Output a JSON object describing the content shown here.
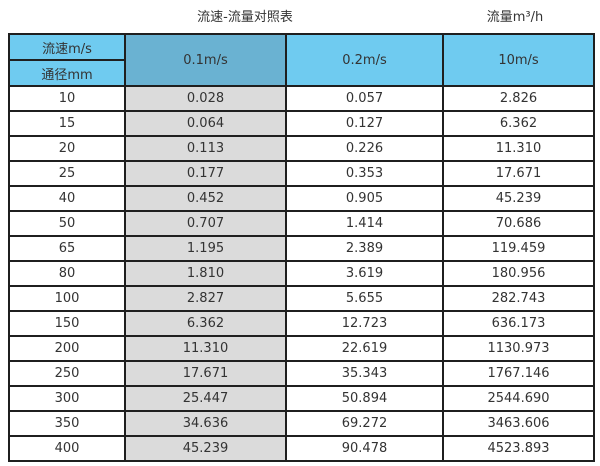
{
  "header": {
    "table_title": "流速-流量对照表",
    "unit_label": "流量m³/h"
  },
  "table": {
    "corner_top": "流速m/s",
    "corner_bottom": "通径mm",
    "velocity_headers": [
      "0.1m/s",
      "0.2m/s",
      "10m/s"
    ]
  },
  "chart_data": {
    "type": "table",
    "title": "流速-流量对照表",
    "unit": "流量m³/h",
    "columns": [
      "通径mm",
      "0.1m/s",
      "0.2m/s",
      "10m/s"
    ],
    "rows": [
      [
        "10",
        "0.028",
        "0.057",
        "2.826"
      ],
      [
        "15",
        "0.064",
        "0.127",
        "6.362"
      ],
      [
        "20",
        "0.113",
        "0.226",
        "11.310"
      ],
      [
        "25",
        "0.177",
        "0.353",
        "17.671"
      ],
      [
        "40",
        "0.452",
        "0.905",
        "45.239"
      ],
      [
        "50",
        "0.707",
        "1.414",
        "70.686"
      ],
      [
        "65",
        "1.195",
        "2.389",
        "119.459"
      ],
      [
        "80",
        "1.810",
        "3.619",
        "180.956"
      ],
      [
        "100",
        "2.827",
        "5.655",
        "282.743"
      ],
      [
        "150",
        "6.362",
        "12.723",
        "636.173"
      ],
      [
        "200",
        "11.310",
        "22.619",
        "1130.973"
      ],
      [
        "250",
        "17.671",
        "35.343",
        "1767.146"
      ],
      [
        "300",
        "25.447",
        "50.894",
        "2544.690"
      ],
      [
        "350",
        "34.636",
        "69.272",
        "3463.606"
      ],
      [
        "400",
        "45.239",
        "90.478",
        "4523.893"
      ]
    ]
  },
  "colors": {
    "header_light_blue": "#6fcbf0",
    "header_dark_blue": "#6ab2d2",
    "shaded_column_gray": "#dbdbdb",
    "border": "#1f1f1f"
  }
}
